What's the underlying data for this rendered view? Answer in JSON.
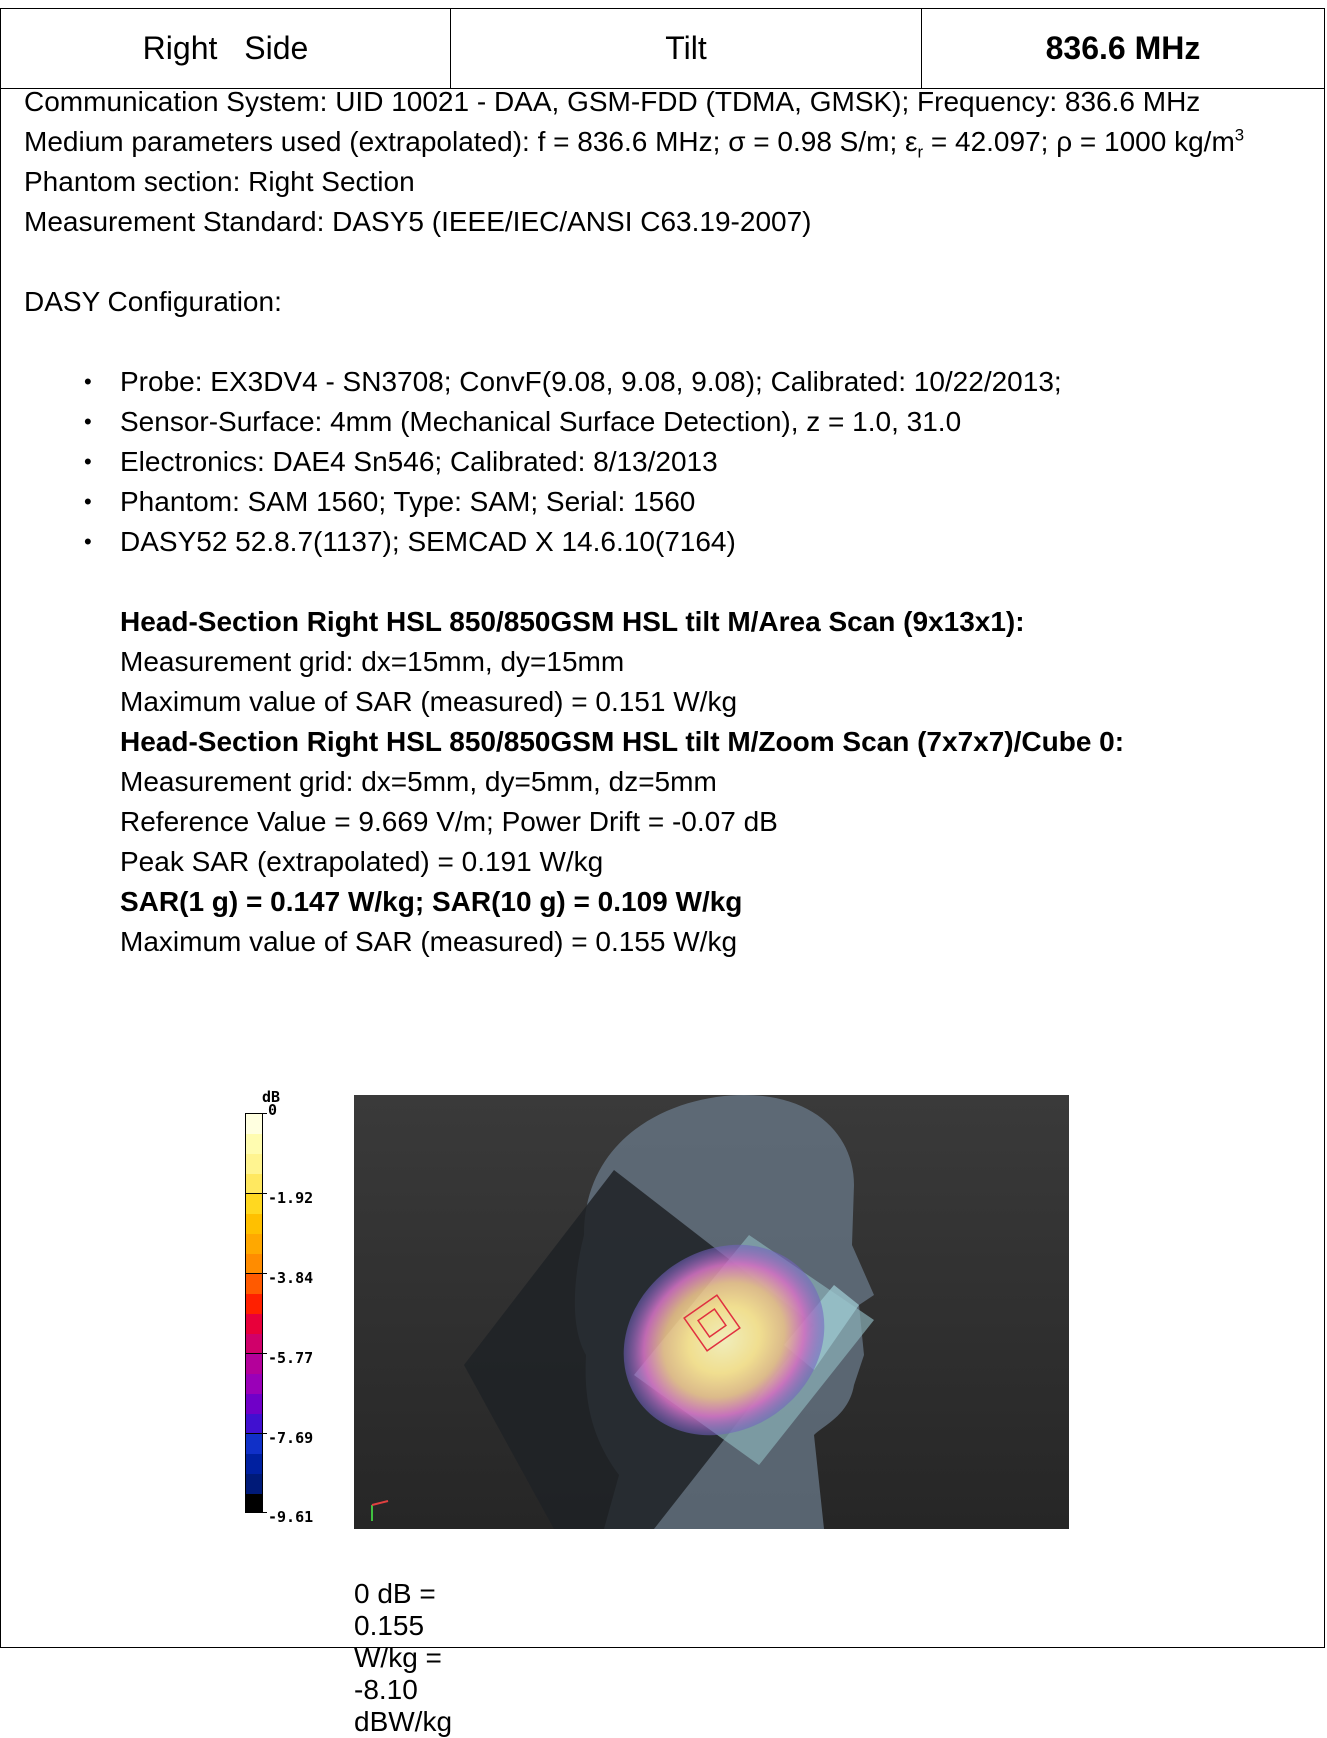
{
  "header": {
    "side": "Right Side",
    "position": "Tilt",
    "frequency": "836.6 MHz"
  },
  "info": {
    "comm_system": "Communication System: UID 10021 - DAA, GSM-FDD (TDMA, GMSK); Frequency: 836.6 MHz",
    "medium_prefix": "Medium parameters used (extrapolated): f = 836.6 MHz; σ = 0.98 S/m; ε",
    "medium_sub": "r",
    "medium_suffix": " = 42.097; ρ = 1000 kg/m",
    "medium_sup": "3",
    "phantom_section": "Phantom section: Right Section",
    "standard": "Measurement Standard: DASY5 (IEEE/IEC/ANSI C63.19-2007)",
    "dasy_config": "DASY Configuration:"
  },
  "config_items": [
    "Probe: EX3DV4 - SN3708; ConvF(9.08, 9.08, 9.08); Calibrated: 10/22/2013;",
    "Sensor-Surface: 4mm (Mechanical Surface Detection), z = 1.0, 31.0",
    "Electronics: DAE4 Sn546; Calibrated: 8/13/2013",
    "Phantom: SAM 1560; Type: SAM; Serial: 1560",
    "DASY52 52.8.7(1137); SEMCAD X 14.6.10(7164)"
  ],
  "area_scan": {
    "title": "Head-Section Right HSL 850/850GSM HSL tilt M/Area Scan (9x13x1):",
    "grid": "Measurement grid: dx=15mm, dy=15mm",
    "max": "Maximum value of SAR (measured) = 0.151 W/kg"
  },
  "zoom_scan": {
    "title": "Head-Section Right HSL 850/850GSM HSL tilt M/Zoom Scan (7x7x7)/Cube 0:",
    "grid": "Measurement grid: dx=5mm, dy=5mm, dz=5mm",
    "reference": "Reference Value = 9.669 V/m; Power Drift = -0.07 dB",
    "peak": "Peak SAR (extrapolated) = 0.191 W/kg",
    "sar": "SAR(1 g) = 0.147 W/kg; SAR(10 g) = 0.109 W/kg",
    "max": "Maximum value of SAR (measured) = 0.155 W/kg"
  },
  "color_scale": {
    "unit": "dB",
    "labels": [
      "0",
      "-1.92",
      "-3.84",
      "-5.77",
      "-7.69",
      "-9.61"
    ],
    "colors": [
      "#ffffe0",
      "#fffcb0",
      "#fff490",
      "#ffe860",
      "#ffd820",
      "#ffc000",
      "#ffa800",
      "#ff8c00",
      "#ff5a00",
      "#ff2000",
      "#e8003a",
      "#d0006a",
      "#b4009a",
      "#9a00b8",
      "#7000c8",
      "#4010d0",
      "#1030c8",
      "#0020a0",
      "#001a78",
      "#000000"
    ]
  },
  "caption": "0 dB = 0.155 W/kg = -8.10 dBW/kg"
}
